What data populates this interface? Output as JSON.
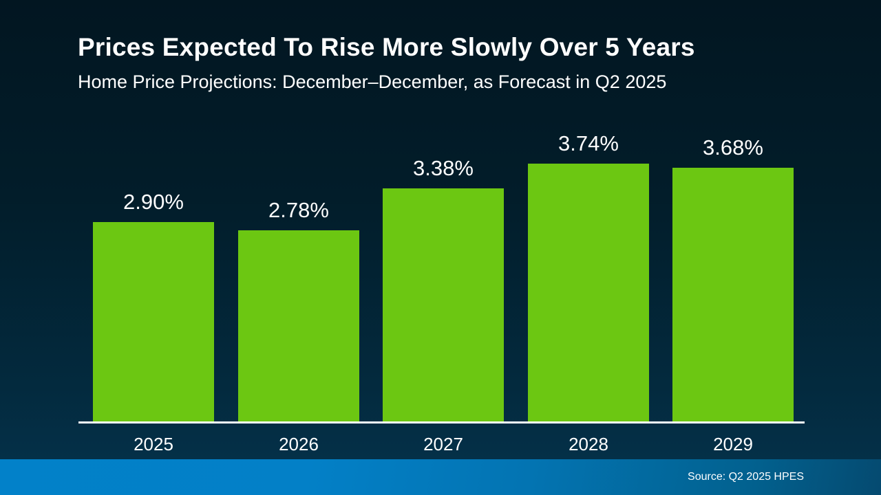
{
  "header": {
    "title": "Prices Expected To Rise More Slowly Over 5 Years",
    "subtitle": "Home Price Projections: December–December, as Forecast in Q2 2025"
  },
  "chart_data": {
    "type": "bar",
    "title": "Prices Expected To Rise More Slowly Over 5 Years",
    "subtitle": "Home Price Projections: December–December, as Forecast in Q2 2025",
    "categories": [
      "2025",
      "2026",
      "2027",
      "2028",
      "2029"
    ],
    "values": [
      2.9,
      2.78,
      3.38,
      3.74,
      3.68
    ],
    "labels": [
      "2.90%",
      "2.78%",
      "3.38%",
      "3.74%",
      "3.68%"
    ],
    "xlabel": "",
    "ylabel": "",
    "ylim": [
      0,
      4
    ],
    "grid": false,
    "legend": false,
    "bar_color": "#6cc712",
    "label_color": "#ffffff"
  },
  "footer": {
    "source": "Source: Q2 2025 HPES"
  },
  "colors": {
    "background_top": "#021621",
    "background_bottom": "#043048",
    "bar_green": "#6cc712",
    "axis_line": "#ffffff",
    "footer_blue_left": "#0281c9",
    "footer_blue_right": "#054a70",
    "text": "#ffffff"
  }
}
